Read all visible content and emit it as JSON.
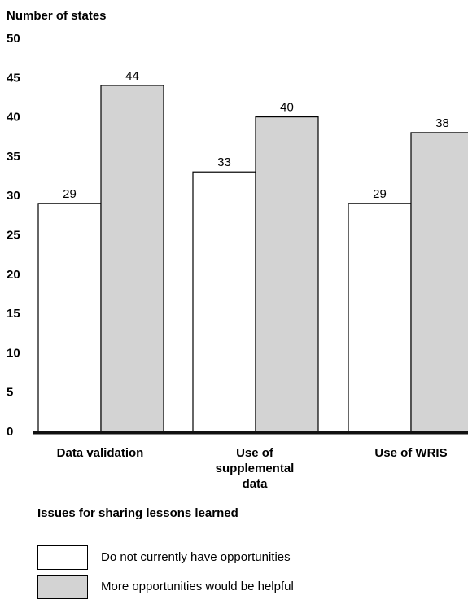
{
  "chart_data": {
    "type": "bar",
    "ylabel": "Number of states",
    "xlabel": "Issues for sharing lessons learned",
    "ylim": [
      0,
      50
    ],
    "yticks": [
      0,
      5,
      10,
      15,
      20,
      25,
      30,
      35,
      40,
      45,
      50
    ],
    "categories": [
      [
        "Data validation"
      ],
      [
        "Use of",
        "supplemental",
        "data"
      ],
      [
        "Use of WRIS"
      ]
    ],
    "series": [
      {
        "name": "Do not currently have opportunities",
        "color": "#ffffff",
        "values": [
          29,
          33,
          29
        ]
      },
      {
        "name": "More opportunities would be helpful",
        "color": "#d3d3d3",
        "values": [
          44,
          40,
          38
        ]
      }
    ],
    "legend_position": "bottom-left",
    "grid": false
  }
}
